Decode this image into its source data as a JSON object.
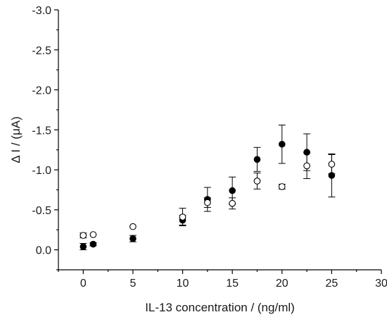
{
  "chart_data": {
    "type": "scatter",
    "xlabel": "IL-13 concentration / (ng/ml)",
    "ylabel": "Δ I / (μA)",
    "xlim": [
      -2.5,
      30
    ],
    "ylim": [
      0.25,
      -3.0
    ],
    "y_axis_inverted": true,
    "x_ticks": [
      0,
      5,
      10,
      15,
      20,
      25,
      30
    ],
    "x_tick_labels": [
      "0",
      "5",
      "10",
      "15",
      "20",
      "25",
      "30"
    ],
    "y_ticks": [
      0.0,
      -0.5,
      -1.0,
      -1.5,
      -2.0,
      -2.5,
      -3.0
    ],
    "y_tick_labels": [
      "0.0",
      "-0.5",
      "-1.0",
      "-1.5",
      "-2.0",
      "-2.5",
      "-3.0"
    ],
    "grid": false,
    "series": [
      {
        "marker": "filled-circle",
        "color": "#000000",
        "points": [
          {
            "x": 0,
            "y": -0.04,
            "err": 0.04
          },
          {
            "x": 1,
            "y": -0.07,
            "err": 0.02
          },
          {
            "x": 5,
            "y": -0.14,
            "err": 0.04
          },
          {
            "x": 10,
            "y": -0.37,
            "err": 0.06
          },
          {
            "x": 12.5,
            "y": -0.63,
            "err": 0.15
          },
          {
            "x": 15,
            "y": -0.74,
            "err": 0.17
          },
          {
            "x": 17.5,
            "y": -1.13,
            "err": 0.15
          },
          {
            "x": 20,
            "y": -1.32,
            "err": 0.24
          },
          {
            "x": 22.5,
            "y": -1.22,
            "err": 0.23
          },
          {
            "x": 25,
            "y": -0.93,
            "err": 0.27
          }
        ]
      },
      {
        "marker": "open-circle",
        "color": "#000000",
        "points": [
          {
            "x": 0,
            "y": -0.18,
            "err": 0.03
          },
          {
            "x": 1,
            "y": -0.19,
            "err": 0.0
          },
          {
            "x": 5,
            "y": -0.29,
            "err": 0.0
          },
          {
            "x": 10,
            "y": -0.41,
            "err": 0.11
          },
          {
            "x": 12.5,
            "y": -0.59,
            "err": 0.06
          },
          {
            "x": 15,
            "y": -0.58,
            "err": 0.07
          },
          {
            "x": 17.5,
            "y": -0.86,
            "err": 0.1
          },
          {
            "x": 20,
            "y": -0.79,
            "err": 0.03
          },
          {
            "x": 22.5,
            "y": -1.05,
            "err": 0.16
          },
          {
            "x": 25,
            "y": -1.07,
            "err": 0.12
          }
        ]
      }
    ]
  }
}
